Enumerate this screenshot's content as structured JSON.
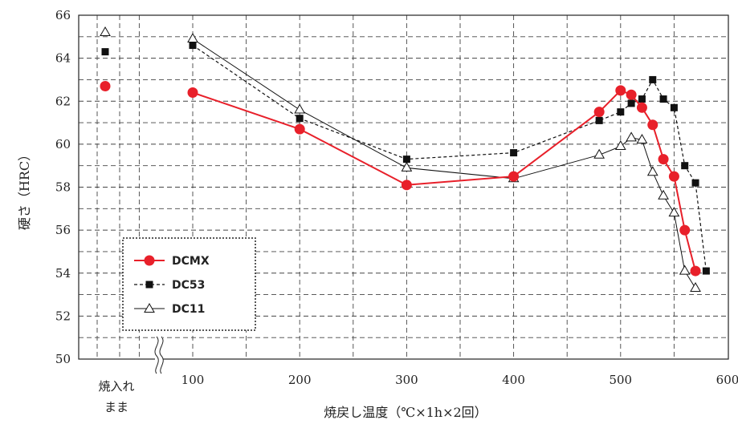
{
  "chart_data": {
    "type": "line",
    "xlabel": "焼戻し温度（℃×1h×2回）",
    "ylabel": "硬さ（HRC）",
    "x_ticks": [
      100,
      200,
      300,
      400,
      500,
      600
    ],
    "y_ticks": [
      50,
      52,
      54,
      56,
      58,
      60,
      62,
      64,
      66
    ],
    "xlim": [
      0,
      600
    ],
    "ylim": [
      50,
      66
    ],
    "grid": true,
    "legend_position": "bottom-left",
    "as_quenched_label": [
      "焼入れ",
      "まま"
    ],
    "series": [
      {
        "name": "DCMX",
        "color": "#e8202a",
        "marker": "circle",
        "line_style": "solid",
        "as_quenched": 62.7,
        "x": [
          100,
          200,
          300,
          400,
          480,
          500,
          510,
          520,
          530,
          540,
          550,
          560,
          570
        ],
        "y": [
          62.4,
          60.7,
          58.1,
          58.5,
          61.5,
          62.5,
          62.3,
          61.7,
          60.9,
          59.3,
          58.5,
          56.0,
          54.1
        ]
      },
      {
        "name": "DC53",
        "color": "#111111",
        "marker": "square",
        "line_style": "dashed",
        "as_quenched": 64.3,
        "x": [
          100,
          200,
          300,
          400,
          480,
          500,
          510,
          520,
          530,
          540,
          550,
          560,
          570,
          580
        ],
        "y": [
          64.6,
          61.2,
          59.3,
          59.6,
          61.1,
          61.5,
          61.9,
          62.1,
          63.0,
          62.1,
          61.7,
          59.0,
          58.2,
          54.1
        ]
      },
      {
        "name": "DC11",
        "color": "#111111",
        "marker": "triangle",
        "line_style": "solid",
        "as_quenched": 65.2,
        "x": [
          100,
          200,
          300,
          400,
          480,
          500,
          510,
          520,
          530,
          540,
          550,
          560,
          570
        ],
        "y": [
          64.9,
          61.6,
          58.9,
          58.4,
          59.5,
          59.9,
          60.3,
          60.2,
          58.7,
          57.6,
          56.8,
          54.1,
          53.3
        ]
      }
    ]
  }
}
